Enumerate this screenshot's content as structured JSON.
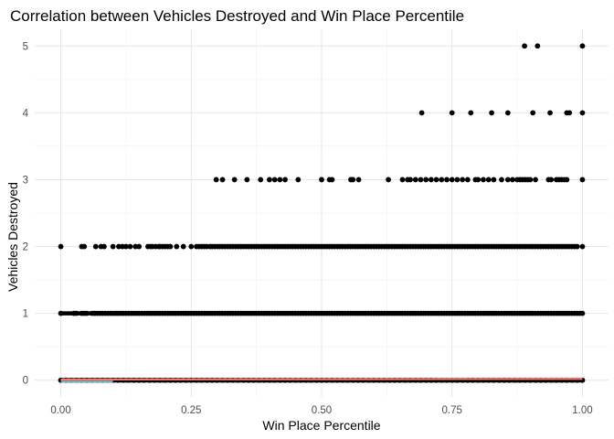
{
  "chart_data": {
    "type": "scatter",
    "title": "Correlation between Vehicles Destroyed and Win Place Percentile",
    "xlabel": "Win Place Percentile",
    "ylabel": "Vehicles Destroyed",
    "xlim": [
      -0.05,
      1.05
    ],
    "ylim": [
      -0.25,
      5.25
    ],
    "x_ticks": [
      "0.00",
      "0.25",
      "0.50",
      "0.75",
      "1.00"
    ],
    "y_ticks": [
      "0",
      "1",
      "2",
      "3",
      "4",
      "5"
    ],
    "grid": true,
    "legend": "none",
    "point_color": "#000000",
    "trend_line_color": "#f8766d",
    "band_color": "#7fbfbf",
    "series": [
      {
        "y": 5,
        "x": [
          0.889,
          0.914,
          1.0
        ]
      },
      {
        "y": 4,
        "x": [
          0.692,
          0.75,
          0.786,
          0.826,
          0.857,
          0.905,
          0.938,
          0.97,
          0.975,
          1.0
        ]
      },
      {
        "y": 3,
        "x": [
          0.298,
          0.31,
          0.333,
          0.357,
          0.383,
          0.4,
          0.41,
          0.42,
          0.43,
          0.455,
          0.5,
          0.515,
          0.52,
          0.556,
          0.56,
          0.571,
          0.628,
          0.655,
          0.665,
          0.67,
          0.68,
          0.69,
          0.7,
          0.71,
          0.72,
          0.73,
          0.74,
          0.75,
          0.76,
          0.77,
          0.78,
          0.795,
          0.8,
          0.81,
          0.82,
          0.83,
          0.845,
          0.857,
          0.866,
          0.875,
          0.88,
          0.885,
          0.89,
          0.895,
          0.9,
          0.91,
          0.935,
          0.94,
          0.95,
          0.955,
          0.96,
          0.965,
          0.97,
          1.0
        ]
      },
      {
        "y": 2,
        "x": [
          0.0,
          0.04,
          0.045,
          0.067,
          0.077,
          0.083,
          0.1,
          0.111,
          0.118,
          0.125,
          0.133,
          0.143,
          0.15,
          0.167,
          0.172,
          0.176,
          0.182,
          0.188,
          0.19,
          0.195,
          0.2,
          0.205,
          0.21,
          0.222,
          0.235,
          0.25,
          0.26,
          0.265,
          0.27,
          0.275,
          0.28,
          0.286,
          0.29,
          0.295,
          0.3,
          0.305,
          0.31,
          0.315,
          0.32,
          0.325,
          0.33,
          0.335,
          0.34,
          0.345,
          0.35,
          0.355,
          0.36,
          0.365,
          0.37,
          0.375,
          0.38,
          0.385,
          0.39,
          0.395,
          0.4,
          0.405,
          0.41,
          0.415,
          0.42,
          0.425,
          0.43,
          0.435,
          0.44,
          0.445,
          0.45,
          0.455,
          0.46,
          0.465,
          0.47,
          0.475,
          0.48,
          0.485,
          0.49,
          0.495,
          0.5,
          0.505,
          0.51,
          0.515,
          0.52,
          0.525,
          0.53,
          0.535,
          0.54,
          0.545,
          0.55,
          0.555,
          0.56,
          0.565,
          0.57,
          0.575,
          0.58,
          0.585,
          0.59,
          0.595,
          0.6,
          0.605,
          0.61,
          0.615,
          0.62,
          0.625,
          0.63,
          0.635,
          0.64,
          0.645,
          0.65,
          0.655,
          0.66,
          0.665,
          0.67,
          0.675,
          0.68,
          0.685,
          0.69,
          0.695,
          0.7,
          0.705,
          0.71,
          0.715,
          0.72,
          0.725,
          0.73,
          0.735,
          0.74,
          0.745,
          0.75,
          0.755,
          0.76,
          0.765,
          0.77,
          0.775,
          0.78,
          0.785,
          0.79,
          0.795,
          0.8,
          0.805,
          0.81,
          0.815,
          0.82,
          0.825,
          0.83,
          0.835,
          0.84,
          0.845,
          0.85,
          0.855,
          0.86,
          0.865,
          0.87,
          0.875,
          0.88,
          0.885,
          0.89,
          0.895,
          0.9,
          0.905,
          0.91,
          0.915,
          0.92,
          0.925,
          0.93,
          0.935,
          0.94,
          0.945,
          0.95,
          0.955,
          0.96,
          0.965,
          0.97,
          0.975,
          0.98,
          0.985,
          0.99,
          1.0
        ]
      },
      {
        "y": 1,
        "x": [
          0.0,
          0.025,
          0.03,
          0.04,
          0.045,
          0.05,
          0.06,
          0.065,
          0.07,
          0.075,
          0.08,
          0.085,
          0.09,
          0.095,
          0.1,
          0.105,
          0.11,
          0.115,
          0.12,
          0.125,
          0.13,
          0.135,
          0.14,
          0.145,
          0.15,
          0.155,
          0.16,
          0.165,
          0.17,
          0.175,
          0.18,
          0.185,
          0.19,
          0.195,
          0.2,
          0.205,
          0.21,
          0.215,
          0.22,
          0.225,
          0.23,
          0.235,
          0.24,
          0.245,
          0.25,
          0.255,
          0.26,
          0.265,
          0.27,
          0.275,
          0.28,
          0.285,
          0.29,
          0.295,
          0.3,
          0.305,
          0.31,
          0.315,
          0.32,
          0.325,
          0.33,
          0.335,
          0.34,
          0.345,
          0.35,
          0.355,
          0.36,
          0.365,
          0.37,
          0.375,
          0.38,
          0.385,
          0.39,
          0.395,
          0.4,
          0.405,
          0.41,
          0.415,
          0.42,
          0.425,
          0.43,
          0.435,
          0.44,
          0.445,
          0.45,
          0.455,
          0.46,
          0.465,
          0.47,
          0.475,
          0.48,
          0.485,
          0.49,
          0.495,
          0.5,
          0.505,
          0.51,
          0.515,
          0.52,
          0.525,
          0.53,
          0.535,
          0.54,
          0.545,
          0.55,
          0.555,
          0.56,
          0.565,
          0.57,
          0.575,
          0.58,
          0.585,
          0.59,
          0.595,
          0.6,
          0.605,
          0.61,
          0.615,
          0.62,
          0.625,
          0.63,
          0.635,
          0.64,
          0.645,
          0.65,
          0.655,
          0.66,
          0.665,
          0.67,
          0.675,
          0.68,
          0.685,
          0.69,
          0.695,
          0.7,
          0.705,
          0.71,
          0.715,
          0.72,
          0.725,
          0.73,
          0.735,
          0.74,
          0.745,
          0.75,
          0.755,
          0.76,
          0.765,
          0.77,
          0.775,
          0.78,
          0.785,
          0.79,
          0.795,
          0.8,
          0.805,
          0.81,
          0.815,
          0.82,
          0.825,
          0.83,
          0.835,
          0.84,
          0.845,
          0.85,
          0.855,
          0.86,
          0.865,
          0.87,
          0.875,
          0.88,
          0.885,
          0.89,
          0.895,
          0.9,
          0.905,
          0.91,
          0.915,
          0.92,
          0.925,
          0.93,
          0.935,
          0.94,
          0.945,
          0.95,
          0.955,
          0.96,
          0.965,
          0.97,
          0.975,
          0.98,
          0.985,
          0.99,
          0.995,
          1.0
        ]
      },
      {
        "y": 0,
        "x": [
          0.0,
          0.01,
          0.02,
          0.03,
          0.04,
          0.05,
          0.06,
          0.07,
          0.08,
          0.09,
          0.1,
          0.11,
          0.12,
          0.13,
          0.14,
          0.15,
          0.16,
          0.17,
          0.18,
          0.19,
          0.2,
          0.21,
          0.22,
          0.23,
          0.24,
          0.25,
          0.26,
          0.27,
          0.28,
          0.29,
          0.3,
          0.31,
          0.32,
          0.33,
          0.34,
          0.35,
          0.36,
          0.37,
          0.38,
          0.39,
          0.4,
          0.41,
          0.42,
          0.43,
          0.44,
          0.45,
          0.46,
          0.47,
          0.48,
          0.49,
          0.5,
          0.51,
          0.52,
          0.53,
          0.54,
          0.55,
          0.56,
          0.57,
          0.58,
          0.59,
          0.6,
          0.61,
          0.62,
          0.63,
          0.64,
          0.65,
          0.66,
          0.67,
          0.68,
          0.69,
          0.7,
          0.71,
          0.72,
          0.73,
          0.74,
          0.75,
          0.76,
          0.77,
          0.78,
          0.79,
          0.8,
          0.81,
          0.82,
          0.83,
          0.84,
          0.85,
          0.86,
          0.87,
          0.88,
          0.89,
          0.9,
          0.91,
          0.92,
          0.93,
          0.94,
          0.95,
          0.96,
          0.97,
          0.98,
          0.99,
          1.0
        ]
      }
    ],
    "trend_line": {
      "x": [
        0.0,
        1.0
      ],
      "y": [
        0.01,
        0.02
      ]
    }
  }
}
